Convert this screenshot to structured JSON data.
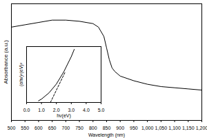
{
  "chart_data": [
    {
      "type": "line",
      "x_label": "Wavelength (nm)",
      "y_label": "Absorbance (a.u.)",
      "x": [
        500,
        550,
        600,
        650,
        700,
        750,
        800,
        820,
        840,
        850,
        860,
        870,
        880,
        900,
        950,
        1000,
        1050,
        1100,
        1150,
        1200
      ],
      "values": [
        0.8,
        0.82,
        0.84,
        0.86,
        0.86,
        0.85,
        0.83,
        0.8,
        0.72,
        0.62,
        0.52,
        0.45,
        0.42,
        0.38,
        0.34,
        0.31,
        0.29,
        0.28,
        0.27,
        0.26
      ],
      "color": "#000000",
      "xlim": [
        500,
        1200
      ],
      "xticks": [
        500,
        550,
        600,
        650,
        700,
        750,
        800,
        850,
        900,
        950,
        1000,
        1050,
        1100,
        1150,
        1200
      ],
      "ylim": [
        0,
        1
      ],
      "tick_labels": "x",
      "grid": false
    },
    {
      "type": "line",
      "x_label": "hν(eV)",
      "y_label": "(αhν)²(eV)²",
      "series": [
        {
          "x": [
            0.8,
            1.0,
            1.5,
            2.0,
            2.5,
            3.0,
            3.2
          ],
          "values": [
            0.03,
            0.06,
            0.17,
            0.33,
            0.55,
            0.82,
            0.95
          ],
          "color": "#000000",
          "line_style": "solid"
        },
        {
          "x": [
            1.6,
            2.6
          ],
          "values": [
            0.0,
            0.55
          ],
          "color": "#000000",
          "line_style": "dashed"
        }
      ],
      "xlim": [
        0,
        5
      ],
      "xticks": [
        0,
        1,
        2,
        3,
        4,
        5
      ],
      "ylim": [
        0,
        1
      ],
      "tick_labels": "x",
      "grid": false
    }
  ]
}
